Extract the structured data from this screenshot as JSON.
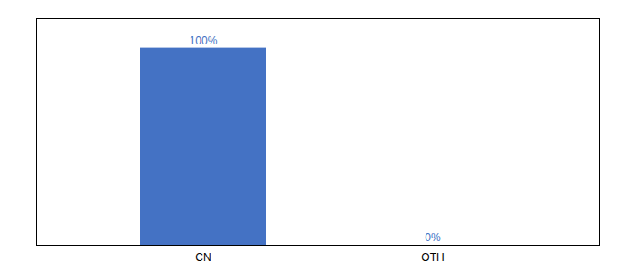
{
  "chart_data": {
    "type": "bar",
    "categories": [
      "CN",
      "OTH"
    ],
    "values": [
      100,
      0
    ],
    "value_labels": [
      "100%",
      "0%"
    ],
    "data_labels": true,
    "color": "#4472c4",
    "ylim": [
      0,
      115
    ],
    "yticks": [],
    "tick_labels": "x",
    "grid": false
  }
}
